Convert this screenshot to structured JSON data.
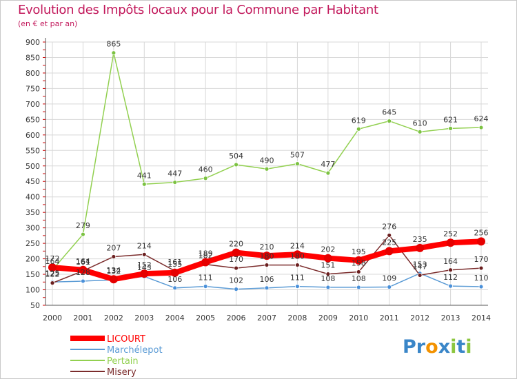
{
  "header": {
    "title": "Evolution des Impôts locaux pour la Commune par Habitant",
    "subtitle": "(en € et par an)"
  },
  "logo": {
    "text": "Proxiti",
    "letters": [
      {
        "ch": "P",
        "color": "#3a86c8"
      },
      {
        "ch": "r",
        "color": "#3a86c8"
      },
      {
        "ch": "o",
        "color": "#f39200"
      },
      {
        "ch": "x",
        "color": "#3a86c8"
      },
      {
        "ch": "i",
        "color": "#8cc63f"
      },
      {
        "ch": "t",
        "color": "#3a86c8"
      },
      {
        "ch": "i",
        "color": "#8cc63f"
      }
    ]
  },
  "colors": {
    "title": "#c2185b",
    "grid": "#d8d8d8",
    "axis_ticks": "#cc0000"
  },
  "chart_data": {
    "type": "line",
    "title": "Evolution des Impôts locaux pour la Commune par Habitant",
    "subtitle": "(en € et par an)",
    "x": [
      2000,
      2001,
      2002,
      2003,
      2004,
      2005,
      2006,
      2007,
      2008,
      2009,
      2010,
      2011,
      2012,
      2013,
      2014
    ],
    "ylim": [
      50,
      900
    ],
    "yticks": [
      50,
      100,
      150,
      200,
      250,
      300,
      350,
      400,
      450,
      500,
      550,
      600,
      650,
      700,
      750,
      800,
      850,
      900
    ],
    "grid": true,
    "legend_position": "bottom-left",
    "series": [
      {
        "name": "LICOURT",
        "color": "#ff0000",
        "marker": "#e60000",
        "emphasis": true,
        "values": [
          172,
          164,
          134,
          152,
          155,
          189,
          220,
          210,
          214,
          202,
          195,
          225,
          235,
          252,
          256
        ]
      },
      {
        "name": "Marchélepot",
        "color": "#5b9bd5",
        "marker": "#4a90d9",
        "values": [
          125,
          128,
          132,
          143,
          106,
          111,
          102,
          106,
          111,
          108,
          108,
          109,
          153,
          112,
          110
        ]
      },
      {
        "name": "Pertain",
        "color": "#92d050",
        "marker": "#7cc242",
        "values": [
          164,
          279,
          865,
          441,
          447,
          460,
          504,
          490,
          507,
          477,
          619,
          645,
          610,
          621,
          624
        ]
      },
      {
        "name": "Misery",
        "color": "#7b2c2c",
        "marker": "#6b1f1f",
        "values": [
          122,
          161,
          207,
          214,
          161,
          182,
          170,
          180,
          180,
          151,
          158,
          276,
          147,
          164,
          170
        ]
      }
    ]
  }
}
